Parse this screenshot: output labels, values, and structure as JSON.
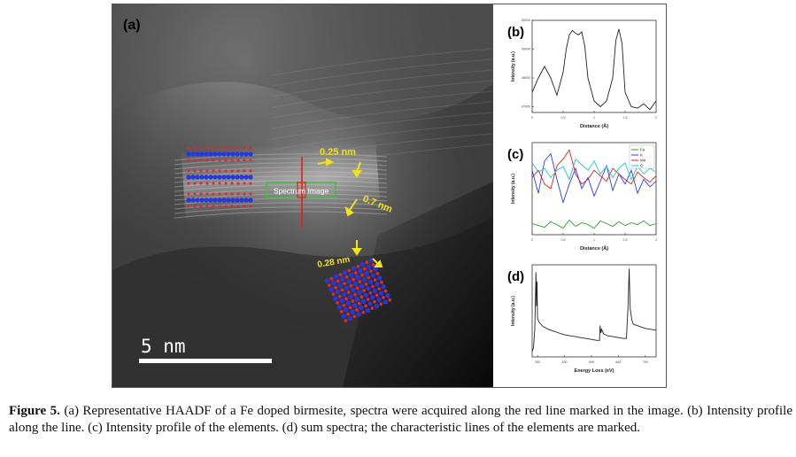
{
  "panel_a": {
    "label": "(a)",
    "annotations": {
      "d1": "0.25 nm",
      "d2": "0.7 nm",
      "d3": "0.28 nm",
      "spectrum_box": "Spectrum Image"
    },
    "scale_bar": "5 nm",
    "colors": {
      "annotation": "#f2e21a",
      "spectrum_line": "#e0201a",
      "box": "#3cc13c",
      "atom_red": "#e8242a",
      "atom_blue": "#2538e0"
    }
  },
  "panel_b": {
    "label": "(b)"
  },
  "panel_c": {
    "label": "(c)"
  },
  "panel_d": {
    "label": "(d)"
  },
  "caption": {
    "bold": "Figure 5.",
    "text": " (a) Representative HAADF of a Fe doped birmesite, spectra were acquired along the red line marked in the image. (b) Intensity profile along the line. (c) Intensity profile of the elements. (d) sum spectra; the characteristic lines of the elements are marked."
  },
  "chart_data": [
    {
      "type": "line",
      "panel": "(b)",
      "xlabel": "Distance (Å)",
      "ylabel": "Intensity (a.u.)",
      "xlim": [
        0,
        2.0
      ],
      "ylim": [
        46800,
        50000
      ],
      "series": [
        {
          "color": "#222222",
          "x": [
            0.0,
            0.1,
            0.2,
            0.3,
            0.4,
            0.5,
            0.55,
            0.6,
            0.65,
            0.7,
            0.75,
            0.8,
            0.85,
            0.9,
            1.0,
            1.1,
            1.2,
            1.3,
            1.35,
            1.4,
            1.45,
            1.5,
            1.6,
            1.7,
            1.8,
            1.9,
            2.0
          ],
          "y": [
            47500,
            48000,
            48400,
            48000,
            47400,
            48200,
            49000,
            49500,
            49650,
            49550,
            49500,
            49600,
            49100,
            48000,
            47200,
            47000,
            47200,
            48000,
            49300,
            49700,
            49200,
            47500,
            47000,
            46950,
            47100,
            46900,
            47200
          ]
        }
      ]
    },
    {
      "type": "line",
      "panel": "(c)",
      "xlabel": "Distance (Å)",
      "ylabel": "Intensity (a.u.)",
      "xlim": [
        0,
        2.0
      ],
      "ylim": [
        0,
        1
      ],
      "legend_position": "top-right",
      "series": [
        {
          "name": "Fe",
          "color": "#2ca02c",
          "x": [
            0.0,
            0.1,
            0.2,
            0.3,
            0.4,
            0.5,
            0.6,
            0.7,
            0.8,
            0.9,
            1.0,
            1.1,
            1.2,
            1.3,
            1.4,
            1.5,
            1.6,
            1.7,
            1.8,
            1.9,
            2.0
          ],
          "y": [
            0.12,
            0.1,
            0.08,
            0.14,
            0.11,
            0.07,
            0.16,
            0.09,
            0.13,
            0.11,
            0.07,
            0.15,
            0.12,
            0.09,
            0.14,
            0.1,
            0.13,
            0.11,
            0.15,
            0.1,
            0.12
          ]
        },
        {
          "name": "K",
          "color": "#2a3df0",
          "x": [
            0.0,
            0.1,
            0.2,
            0.3,
            0.4,
            0.5,
            0.6,
            0.7,
            0.8,
            0.9,
            1.0,
            1.1,
            1.2,
            1.3,
            1.4,
            1.5,
            1.6,
            1.7,
            1.8,
            1.9,
            2.0
          ],
          "y": [
            0.7,
            0.45,
            0.8,
            0.88,
            0.6,
            0.35,
            0.55,
            0.72,
            0.5,
            0.62,
            0.42,
            0.58,
            0.75,
            0.48,
            0.66,
            0.55,
            0.7,
            0.45,
            0.6,
            0.52,
            0.58
          ]
        },
        {
          "name": "Mn",
          "color": "#e0201a",
          "x": [
            0.0,
            0.1,
            0.2,
            0.3,
            0.4,
            0.5,
            0.6,
            0.7,
            0.8,
            0.9,
            1.0,
            1.1,
            1.2,
            1.3,
            1.4,
            1.5,
            1.6,
            1.7,
            1.8,
            1.9,
            2.0
          ],
          "y": [
            0.62,
            0.7,
            0.55,
            0.5,
            0.75,
            0.82,
            0.92,
            0.66,
            0.55,
            0.6,
            0.7,
            0.64,
            0.58,
            0.72,
            0.66,
            0.6,
            0.55,
            0.68,
            0.62,
            0.57,
            0.64
          ]
        },
        {
          "name": "O",
          "color": "#18c8d0",
          "x": [
            0.0,
            0.1,
            0.2,
            0.3,
            0.4,
            0.5,
            0.6,
            0.7,
            0.8,
            0.9,
            1.0,
            1.1,
            1.2,
            1.3,
            1.4,
            1.5,
            1.6,
            1.7,
            1.8,
            1.9,
            2.0
          ],
          "y": [
            0.78,
            0.68,
            0.72,
            0.62,
            0.7,
            0.74,
            0.6,
            0.82,
            0.76,
            0.7,
            0.8,
            0.66,
            0.74,
            0.62,
            0.72,
            0.78,
            0.6,
            0.74,
            0.66,
            0.72,
            0.68
          ]
        }
      ]
    },
    {
      "type": "line",
      "panel": "(d)",
      "xlabel": "Energy Loss (eV)",
      "ylabel": "Intensity (a.u.)",
      "xlim": [
        280,
        740
      ],
      "ylim": [
        0,
        1
      ],
      "series": [
        {
          "color": "#222222",
          "x": [
            280,
            285,
            290,
            294,
            296,
            298,
            300,
            305,
            320,
            340,
            360,
            380,
            400,
            420,
            440,
            460,
            480,
            500,
            520,
            530,
            532,
            535,
            538,
            545,
            560,
            580,
            600,
            620,
            630,
            636,
            640,
            642,
            644,
            646,
            650,
            655,
            660,
            680,
            700,
            720,
            740
          ],
          "y": [
            0.06,
            0.1,
            0.3,
            0.92,
            0.55,
            0.82,
            0.42,
            0.38,
            0.33,
            0.3,
            0.28,
            0.26,
            0.24,
            0.23,
            0.22,
            0.21,
            0.2,
            0.19,
            0.18,
            0.18,
            0.34,
            0.26,
            0.3,
            0.25,
            0.23,
            0.22,
            0.21,
            0.2,
            0.2,
            0.55,
            0.96,
            0.7,
            0.52,
            0.48,
            0.4,
            0.36,
            0.35,
            0.33,
            0.31,
            0.3,
            0.29
          ]
        }
      ]
    }
  ]
}
